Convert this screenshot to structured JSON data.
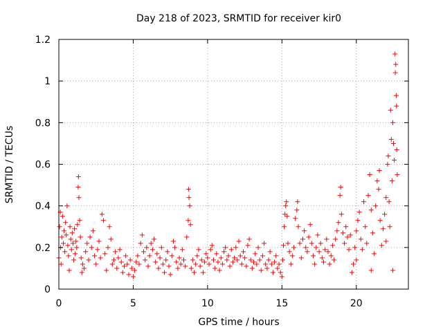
{
  "chart_data": {
    "type": "scatter",
    "title": "Day 218 of 2023, SRMTID for receiver kir0",
    "xlabel": "GPS time / hours",
    "ylabel": "SRMTID / TECUs",
    "xlim": [
      0,
      23.5
    ],
    "ylim": [
      0,
      1.2
    ],
    "xticks": [
      0,
      5,
      10,
      15,
      20
    ],
    "xtick_labels": [
      "0",
      "5",
      "10",
      "15",
      "20"
    ],
    "yticks": [
      0,
      0.2,
      0.4,
      0.6,
      0.8,
      1.0,
      1.2
    ],
    "ytick_labels": [
      "0",
      "0.2",
      "0.4",
      "0.6",
      "0.8",
      "1",
      "1.2"
    ],
    "grid": true,
    "marker": "+",
    "color": "#ff0000",
    "series": [
      {
        "name": "SRMTID",
        "points": [
          [
            0.0,
            0.15
          ],
          [
            0.05,
            0.3
          ],
          [
            0.1,
            0.37
          ],
          [
            0.12,
            0.2
          ],
          [
            0.15,
            0.12
          ],
          [
            0.2,
            0.25
          ],
          [
            0.25,
            0.35
          ],
          [
            0.3,
            0.22
          ],
          [
            0.35,
            0.28
          ],
          [
            0.4,
            0.18
          ],
          [
            0.45,
            0.32
          ],
          [
            0.5,
            0.26
          ],
          [
            0.55,
            0.4
          ],
          [
            0.6,
            0.21
          ],
          [
            0.65,
            0.16
          ],
          [
            0.7,
            0.09
          ],
          [
            0.75,
            0.3
          ],
          [
            0.8,
            0.24
          ],
          [
            0.85,
            0.19
          ],
          [
            0.9,
            0.27
          ],
          [
            0.95,
            0.22
          ],
          [
            1.0,
            0.14
          ],
          [
            1.05,
            0.29
          ],
          [
            1.1,
            0.17
          ],
          [
            1.15,
            0.23
          ],
          [
            1.2,
            0.2
          ],
          [
            1.25,
            0.31
          ],
          [
            1.3,
            0.49
          ],
          [
            1.32,
            0.54
          ],
          [
            1.35,
            0.44
          ],
          [
            1.4,
            0.33
          ],
          [
            1.45,
            0.25
          ],
          [
            1.5,
            0.15
          ],
          [
            1.55,
            0.08
          ],
          [
            1.6,
            0.12
          ],
          [
            1.7,
            0.1
          ],
          [
            1.8,
            0.18
          ],
          [
            1.9,
            0.22
          ],
          [
            2.0,
            0.14
          ],
          [
            2.1,
            0.25
          ],
          [
            2.2,
            0.2
          ],
          [
            2.3,
            0.28
          ],
          [
            2.4,
            0.16
          ],
          [
            2.5,
            0.12
          ],
          [
            2.6,
            0.19
          ],
          [
            2.7,
            0.23
          ],
          [
            2.8,
            0.15
          ],
          [
            2.9,
            0.36
          ],
          [
            3.0,
            0.33
          ],
          [
            3.1,
            0.17
          ],
          [
            3.2,
            0.09
          ],
          [
            3.3,
            0.2
          ],
          [
            3.4,
            0.3
          ],
          [
            3.5,
            0.24
          ],
          [
            3.6,
            0.12
          ],
          [
            3.7,
            0.14
          ],
          [
            3.8,
            0.18
          ],
          [
            3.9,
            0.1
          ],
          [
            4.0,
            0.15
          ],
          [
            4.1,
            0.19
          ],
          [
            4.2,
            0.13
          ],
          [
            4.3,
            0.08
          ],
          [
            4.4,
            0.11
          ],
          [
            4.5,
            0.16
          ],
          [
            4.6,
            0.12
          ],
          [
            4.7,
            0.07
          ],
          [
            4.8,
            0.14
          ],
          [
            4.9,
            0.1
          ],
          [
            5.0,
            0.06
          ],
          [
            5.1,
            0.09
          ],
          [
            5.2,
            0.13
          ],
          [
            5.3,
            0.16
          ],
          [
            5.4,
            0.12
          ],
          [
            5.5,
            0.22
          ],
          [
            5.6,
            0.26
          ],
          [
            5.7,
            0.18
          ],
          [
            5.8,
            0.14
          ],
          [
            5.9,
            0.2
          ],
          [
            6.0,
            0.11
          ],
          [
            6.1,
            0.16
          ],
          [
            6.2,
            0.22
          ],
          [
            6.3,
            0.19
          ],
          [
            6.4,
            0.24
          ],
          [
            6.5,
            0.13
          ],
          [
            6.6,
            0.17
          ],
          [
            6.7,
            0.1
          ],
          [
            6.8,
            0.15
          ],
          [
            6.9,
            0.2
          ],
          [
            7.0,
            0.12
          ],
          [
            7.1,
            0.08
          ],
          [
            7.2,
            0.14
          ],
          [
            7.3,
            0.18
          ],
          [
            7.4,
            0.11
          ],
          [
            7.5,
            0.07
          ],
          [
            7.6,
            0.16
          ],
          [
            7.7,
            0.23
          ],
          [
            7.8,
            0.2
          ],
          [
            7.9,
            0.13
          ],
          [
            8.0,
            0.1
          ],
          [
            8.1,
            0.15
          ],
          [
            8.2,
            0.12
          ],
          [
            8.3,
            0.19
          ],
          [
            8.4,
            0.14
          ],
          [
            8.5,
            0.11
          ],
          [
            8.6,
            0.25
          ],
          [
            8.7,
            0.33
          ],
          [
            8.72,
            0.48
          ],
          [
            8.75,
            0.44
          ],
          [
            8.8,
            0.4
          ],
          [
            8.85,
            0.31
          ],
          [
            8.9,
            0.1
          ],
          [
            9.0,
            0.14
          ],
          [
            9.1,
            0.08
          ],
          [
            9.2,
            0.12
          ],
          [
            9.3,
            0.16
          ],
          [
            9.4,
            0.19
          ],
          [
            9.5,
            0.11
          ],
          [
            9.6,
            0.14
          ],
          [
            9.7,
            0.08
          ],
          [
            9.8,
            0.13
          ],
          [
            9.9,
            0.17
          ],
          [
            10.0,
            0.15
          ],
          [
            10.1,
            0.12
          ],
          [
            10.2,
            0.19
          ],
          [
            10.3,
            0.21
          ],
          [
            10.4,
            0.14
          ],
          [
            10.5,
            0.1
          ],
          [
            10.6,
            0.17
          ],
          [
            10.7,
            0.13
          ],
          [
            10.8,
            0.09
          ],
          [
            10.9,
            0.15
          ],
          [
            11.0,
            0.12
          ],
          [
            11.1,
            0.18
          ],
          [
            11.2,
            0.2
          ],
          [
            11.3,
            0.14
          ],
          [
            11.4,
            0.16
          ],
          [
            11.5,
            0.11
          ],
          [
            11.6,
            0.19
          ],
          [
            11.7,
            0.13
          ],
          [
            11.8,
            0.15
          ],
          [
            11.9,
            0.2
          ],
          [
            12.0,
            0.14
          ],
          [
            12.1,
            0.23
          ],
          [
            12.2,
            0.16
          ],
          [
            12.3,
            0.12
          ],
          [
            12.4,
            0.18
          ],
          [
            12.5,
            0.15
          ],
          [
            12.6,
            0.11
          ],
          [
            12.7,
            0.21
          ],
          [
            12.8,
            0.24
          ],
          [
            12.9,
            0.14
          ],
          [
            13.0,
            0.1
          ],
          [
            13.1,
            0.13
          ],
          [
            13.2,
            0.17
          ],
          [
            13.3,
            0.12
          ],
          [
            13.4,
            0.2
          ],
          [
            13.5,
            0.14
          ],
          [
            13.6,
            0.09
          ],
          [
            13.7,
            0.16
          ],
          [
            13.8,
            0.22
          ],
          [
            13.9,
            0.12
          ],
          [
            14.0,
            0.1
          ],
          [
            14.1,
            0.14
          ],
          [
            14.2,
            0.18
          ],
          [
            14.3,
            0.12
          ],
          [
            14.4,
            0.08
          ],
          [
            14.5,
            0.13
          ],
          [
            14.6,
            0.16
          ],
          [
            14.7,
            0.1
          ],
          [
            14.8,
            0.12
          ],
          [
            14.9,
            0.08
          ],
          [
            15.0,
            0.06
          ],
          [
            15.05,
            0.14
          ],
          [
            15.1,
            0.21
          ],
          [
            15.15,
            0.3
          ],
          [
            15.2,
            0.36
          ],
          [
            15.25,
            0.4
          ],
          [
            15.3,
            0.42
          ],
          [
            15.35,
            0.35
          ],
          [
            15.4,
            0.22
          ],
          [
            15.5,
            0.18
          ],
          [
            15.6,
            0.12
          ],
          [
            15.7,
            0.16
          ],
          [
            15.8,
            0.2
          ],
          [
            15.9,
            0.34
          ],
          [
            16.0,
            0.38
          ],
          [
            16.05,
            0.42
          ],
          [
            16.1,
            0.3
          ],
          [
            16.2,
            0.22
          ],
          [
            16.3,
            0.15
          ],
          [
            16.4,
            0.24
          ],
          [
            16.5,
            0.28
          ],
          [
            16.6,
            0.2
          ],
          [
            16.7,
            0.18
          ],
          [
            16.8,
            0.25
          ],
          [
            16.9,
            0.31
          ],
          [
            17.0,
            0.22
          ],
          [
            17.1,
            0.16
          ],
          [
            17.2,
            0.12
          ],
          [
            17.3,
            0.2
          ],
          [
            17.4,
            0.26
          ],
          [
            17.5,
            0.18
          ],
          [
            17.6,
            0.22
          ],
          [
            17.7,
            0.15
          ],
          [
            17.8,
            0.13
          ],
          [
            17.9,
            0.19
          ],
          [
            18.0,
            0.24
          ],
          [
            18.1,
            0.18
          ],
          [
            18.2,
            0.12
          ],
          [
            18.3,
            0.16
          ],
          [
            18.4,
            0.21
          ],
          [
            18.5,
            0.14
          ],
          [
            18.6,
            0.24
          ],
          [
            18.7,
            0.28
          ],
          [
            18.8,
            0.32
          ],
          [
            18.9,
            0.45
          ],
          [
            18.95,
            0.49
          ],
          [
            19.0,
            0.36
          ],
          [
            19.1,
            0.27
          ],
          [
            19.2,
            0.22
          ],
          [
            19.3,
            0.3
          ],
          [
            19.4,
            0.25
          ],
          [
            19.5,
            0.19
          ],
          [
            19.6,
            0.26
          ],
          [
            19.7,
            0.08
          ],
          [
            19.8,
            0.12
          ],
          [
            19.9,
            0.2
          ],
          [
            20.0,
            0.28
          ],
          [
            20.1,
            0.33
          ],
          [
            20.2,
            0.37
          ],
          [
            20.3,
            0.24
          ],
          [
            20.4,
            0.19
          ],
          [
            20.5,
            0.42
          ],
          [
            20.6,
            0.3
          ],
          [
            20.7,
            0.22
          ],
          [
            20.8,
            0.45
          ],
          [
            20.9,
            0.55
          ],
          [
            21.0,
            0.38
          ],
          [
            21.1,
            0.27
          ],
          [
            21.2,
            0.17
          ],
          [
            21.3,
            0.4
          ],
          [
            21.4,
            0.52
          ],
          [
            21.5,
            0.48
          ],
          [
            21.55,
            0.57
          ],
          [
            21.6,
            0.33
          ],
          [
            21.7,
            0.21
          ],
          [
            21.8,
            0.29
          ],
          [
            21.9,
            0.36
          ],
          [
            22.0,
            0.44
          ],
          [
            22.1,
            0.6
          ],
          [
            22.15,
            0.64
          ],
          [
            22.2,
            0.42
          ],
          [
            22.25,
            0.3
          ],
          [
            22.3,
            0.86
          ],
          [
            22.35,
            0.72
          ],
          [
            22.4,
            0.52
          ],
          [
            22.45,
            0.8
          ],
          [
            22.5,
            0.7
          ],
          [
            22.55,
            0.62
          ],
          [
            22.6,
            1.13
          ],
          [
            22.62,
            1.04
          ],
          [
            22.65,
            1.08
          ],
          [
            22.68,
            0.93
          ],
          [
            22.7,
            0.88
          ],
          [
            22.72,
            0.67
          ],
          [
            22.75,
            0.55
          ],
          [
            22.45,
            0.09
          ],
          [
            22.0,
            0.23
          ],
          [
            21.0,
            0.09
          ],
          [
            20.0,
            0.14
          ]
        ]
      }
    ]
  }
}
